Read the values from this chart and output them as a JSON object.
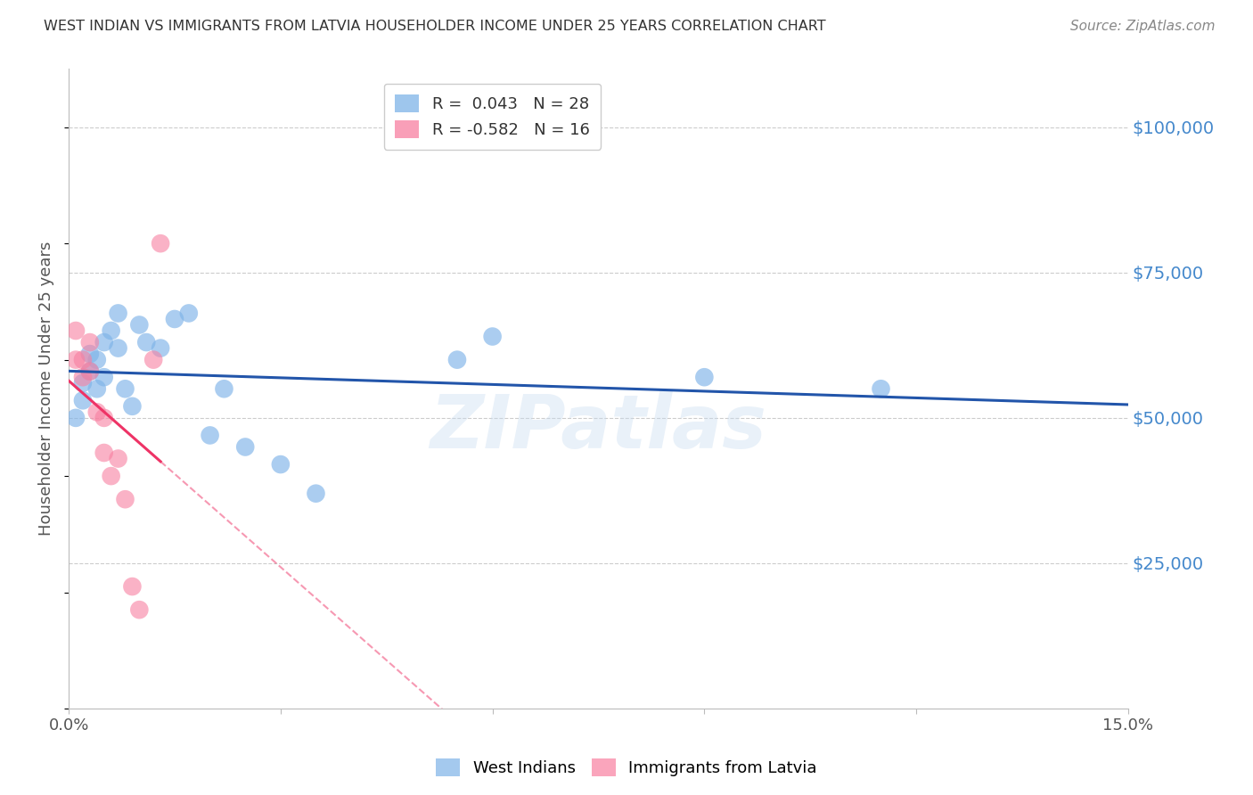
{
  "title": "WEST INDIAN VS IMMIGRANTS FROM LATVIA HOUSEHOLDER INCOME UNDER 25 YEARS CORRELATION CHART",
  "source": "Source: ZipAtlas.com",
  "ylabel": "Householder Income Under 25 years",
  "ytick_values": [
    25000,
    50000,
    75000,
    100000
  ],
  "xlim": [
    0.0,
    0.15
  ],
  "ylim": [
    0,
    110000
  ],
  "legend_blue_r": "R =  0.043",
  "legend_blue_n": "N = 28",
  "legend_pink_r": "R = -0.582",
  "legend_pink_n": "N = 16",
  "blue_color": "#7EB3E8",
  "pink_color": "#F87FA0",
  "line_blue_color": "#2255AA",
  "line_pink_color": "#EE3366",
  "background_color": "#FFFFFF",
  "grid_color": "#CCCCCC",
  "title_color": "#333333",
  "axis_label_color": "#555555",
  "right_tick_color": "#4488CC",
  "watermark": "ZIPatlas",
  "west_indians_x": [
    0.001,
    0.002,
    0.002,
    0.003,
    0.003,
    0.004,
    0.004,
    0.005,
    0.005,
    0.006,
    0.007,
    0.007,
    0.008,
    0.009,
    0.01,
    0.011,
    0.013,
    0.015,
    0.017,
    0.02,
    0.022,
    0.025,
    0.03,
    0.035,
    0.055,
    0.06,
    0.09,
    0.115
  ],
  "west_indians_y": [
    50000,
    53000,
    56000,
    58000,
    61000,
    55000,
    60000,
    57000,
    63000,
    65000,
    62000,
    68000,
    55000,
    52000,
    66000,
    63000,
    62000,
    67000,
    68000,
    47000,
    55000,
    45000,
    42000,
    37000,
    60000,
    64000,
    57000,
    55000
  ],
  "latvia_x": [
    0.001,
    0.001,
    0.002,
    0.002,
    0.003,
    0.003,
    0.004,
    0.005,
    0.005,
    0.006,
    0.007,
    0.008,
    0.009,
    0.01,
    0.012,
    0.013
  ],
  "latvia_y": [
    65000,
    60000,
    60000,
    57000,
    63000,
    58000,
    51000,
    50000,
    44000,
    40000,
    43000,
    36000,
    21000,
    17000,
    60000,
    80000
  ]
}
